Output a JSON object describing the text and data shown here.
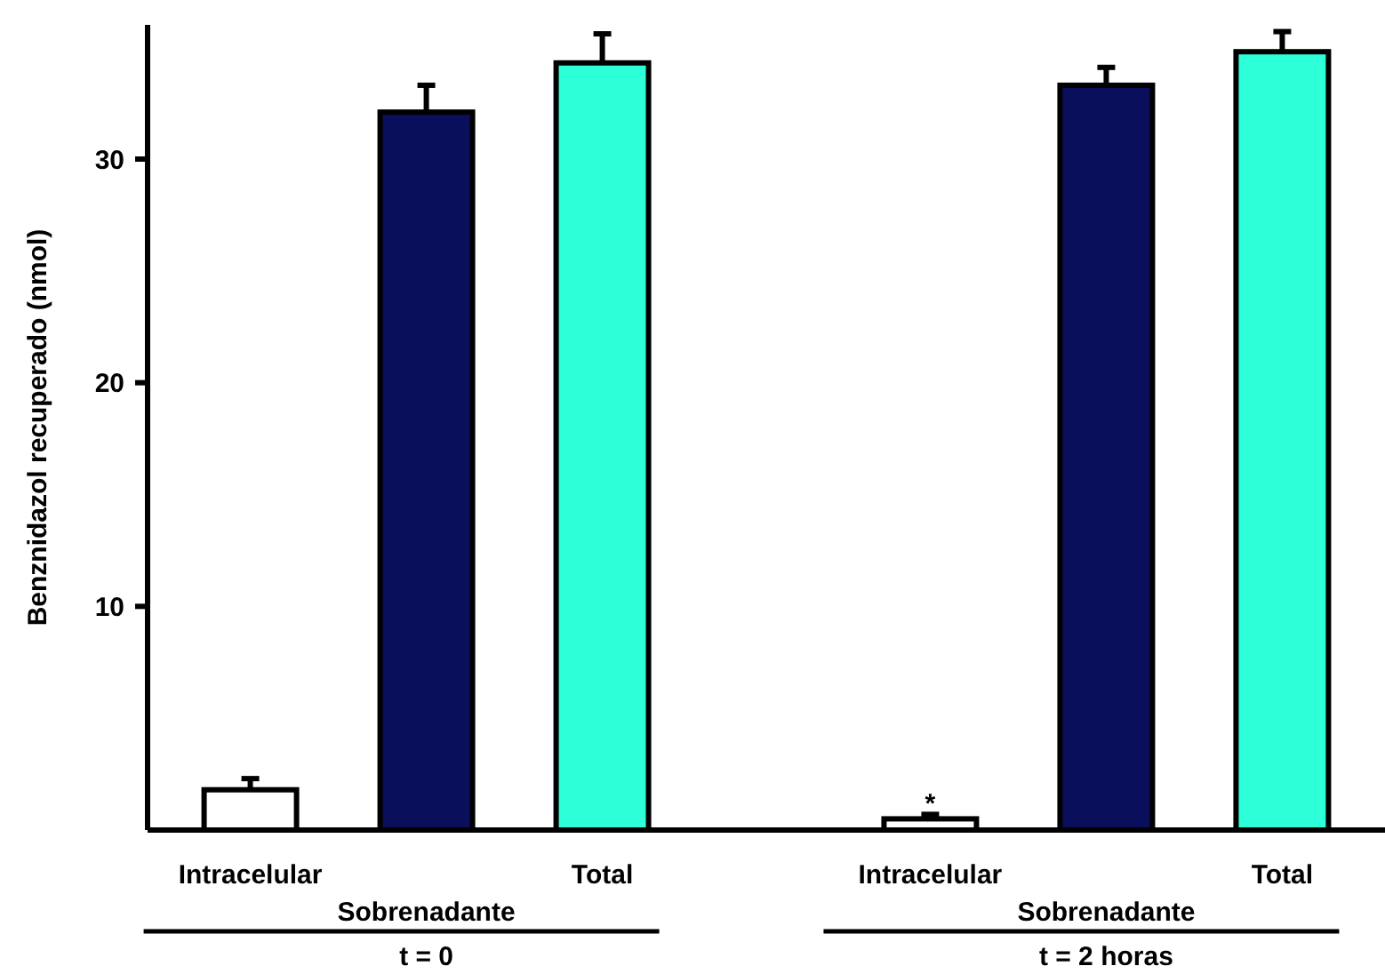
{
  "chart_data": {
    "type": "bar",
    "ylabel": "Benznidazol recuperado (nmol)",
    "categories": [
      "t = 0",
      "t = 2 horas"
    ],
    "series": [
      {
        "name": "Intracelular",
        "color": "#ffffff",
        "values": [
          1.8,
          0.5
        ],
        "errors": [
          [
            1.8,
            2.3
          ],
          [
            0.5,
            0.7
          ]
        ]
      },
      {
        "name": "Sobrenadante",
        "color": "#0a0f5c",
        "values": [
          32.1,
          33.3
        ],
        "errors": [
          [
            32.1,
            33.3
          ],
          [
            33.3,
            34.1
          ]
        ]
      },
      {
        "name": "Total",
        "color": "#2dffd8",
        "values": [
          34.3,
          34.8
        ],
        "errors": [
          [
            34.3,
            35.6
          ],
          [
            34.8,
            35.7
          ]
        ]
      }
    ],
    "annotations": [
      "*"
    ],
    "ylim": [
      0,
      36
    ],
    "yticks": [
      10,
      20,
      30
    ],
    "grid": false
  }
}
